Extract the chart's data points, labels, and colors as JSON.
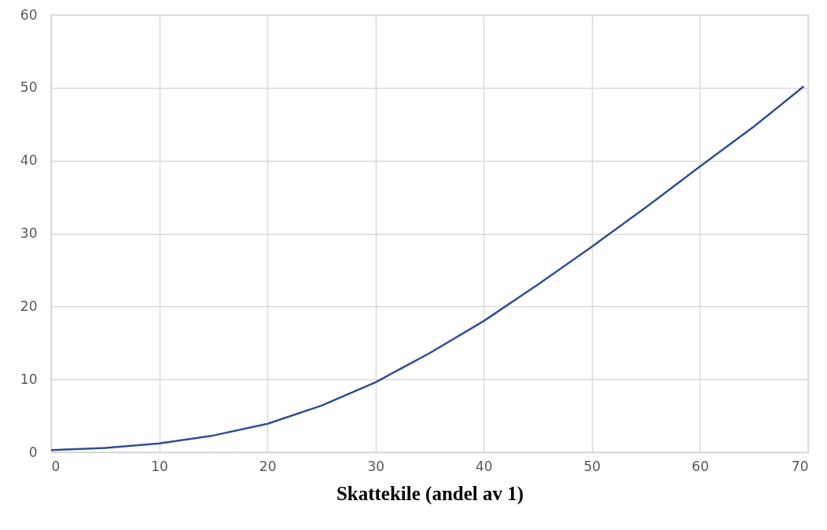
{
  "chart_data": {
    "type": "line",
    "xlabel": "Skattekile (andel av 1)",
    "x": [
      0,
      5,
      10,
      15,
      20,
      25,
      30,
      35,
      40,
      45,
      50,
      55,
      60,
      65,
      69.6
    ],
    "series": [
      {
        "color": "#2f4f8f",
        "values": [
          0.3,
          0.6,
          1.2,
          2.3,
          3.9,
          6.4,
          9.6,
          13.6,
          18,
          23,
          28.2,
          33.6,
          39.2,
          44.7,
          50.2
        ]
      }
    ],
    "xlim": [
      0,
      70
    ],
    "xticks": [
      0,
      10,
      20,
      30,
      40,
      50,
      60,
      70
    ],
    "ylim": [
      0,
      60
    ],
    "yticks": [
      0,
      10,
      20,
      30,
      40,
      50,
      60
    ],
    "grid": true,
    "marker": "none",
    "line_style": "solid"
  }
}
